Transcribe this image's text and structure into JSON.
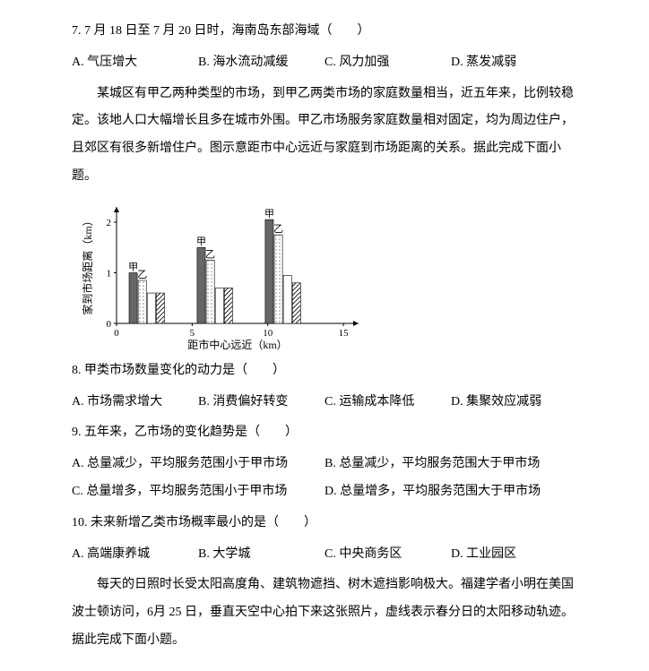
{
  "q7": {
    "text": "7. 7 月 18 日至 7 月 20 日时，海南岛东部海域（　　）",
    "A": "A. 气压增大",
    "B": "B. 海水流动减缓",
    "C": "C. 风力加强",
    "D": "D. 蒸发减弱"
  },
  "passage1": "某城区有甲乙两种类型的市场，到甲乙两类市场的家庭数量相当，近五年来，比例较稳定。该地人口大幅增长且多在城市外围。甲乙市场服务家庭数量相对固定，均为周边住户，且郊区有很多新增住户。图示意距市中心远近与家庭到市场距离的关系。据此完成下面小题。",
  "chart": {
    "type": "grouped-bar",
    "ylabel": "家到市场距离（km）",
    "xlabel": "距市中心远近（km）",
    "xticks": [
      0,
      5,
      10,
      15
    ],
    "yticks": [
      0,
      1,
      2
    ],
    "ylim": [
      0,
      2.3
    ],
    "xlim": [
      0,
      16
    ],
    "groups": [
      {
        "x": 2,
        "bars": [
          {
            "label": "甲",
            "value": 1.0,
            "fill": "#666666"
          },
          {
            "label": "乙",
            "value": 0.85,
            "fill": "dots"
          },
          {
            "label": "",
            "value": 0.6,
            "fill": "#ffffff"
          },
          {
            "label": "",
            "value": 0.6,
            "fill": "hatch"
          }
        ]
      },
      {
        "x": 6.5,
        "bars": [
          {
            "label": "甲",
            "value": 1.5,
            "fill": "#666666"
          },
          {
            "label": "乙",
            "value": 1.25,
            "fill": "dots"
          },
          {
            "label": "",
            "value": 0.7,
            "fill": "#ffffff"
          },
          {
            "label": "",
            "value": 0.7,
            "fill": "hatch"
          }
        ]
      },
      {
        "x": 11,
        "bars": [
          {
            "label": "甲",
            "value": 2.05,
            "fill": "#666666"
          },
          {
            "label": "乙",
            "value": 1.75,
            "fill": "dots"
          },
          {
            "label": "",
            "value": 0.95,
            "fill": "#ffffff"
          },
          {
            "label": "",
            "value": 0.8,
            "fill": "hatch"
          }
        ]
      }
    ],
    "bar_width": 0.6,
    "colors": {
      "solid": "#666666",
      "dotsBg": "#ffffff",
      "dotColor": "#888888",
      "white": "#ffffff",
      "border": "#000000",
      "axis": "#000000",
      "text": "#000000"
    },
    "fontsize_label": 11,
    "fontsize_axis": 12
  },
  "q8": {
    "text": "8. 甲类市场数量变化的动力是（　　）",
    "A": "A. 市场需求增大",
    "B": "B. 消费偏好转变",
    "C": "C. 运输成本降低",
    "D": "D. 集聚效应减弱"
  },
  "q9": {
    "text": "9. 五年来，乙市场的变化趋势是（　　）",
    "A": "A. 总量减少，平均服务范围小于甲市场",
    "B": "B. 总量减少，平均服务范围大于甲市场",
    "C": "C. 总量增多，平均服务范围小于甲市场",
    "D": "D. 总量增多，平均服务范围大于甲市场"
  },
  "q10": {
    "text": "10. 未来新增乙类市场概率最小的是（　　）",
    "A": "A. 高端康养城",
    "B": "B. 大学城",
    "C": "C. 中央商务区",
    "D": "D. 工业园区"
  },
  "passage2": "每天的日照时长受太阳高度角、建筑物遮挡、树木遮挡影响极大。福建学者小明在美国波士顿访问，6月 25 日，垂直天空中心拍下来这张照片，虚线表示春分日的太阳移动轨迹。据此完成下面小题。"
}
